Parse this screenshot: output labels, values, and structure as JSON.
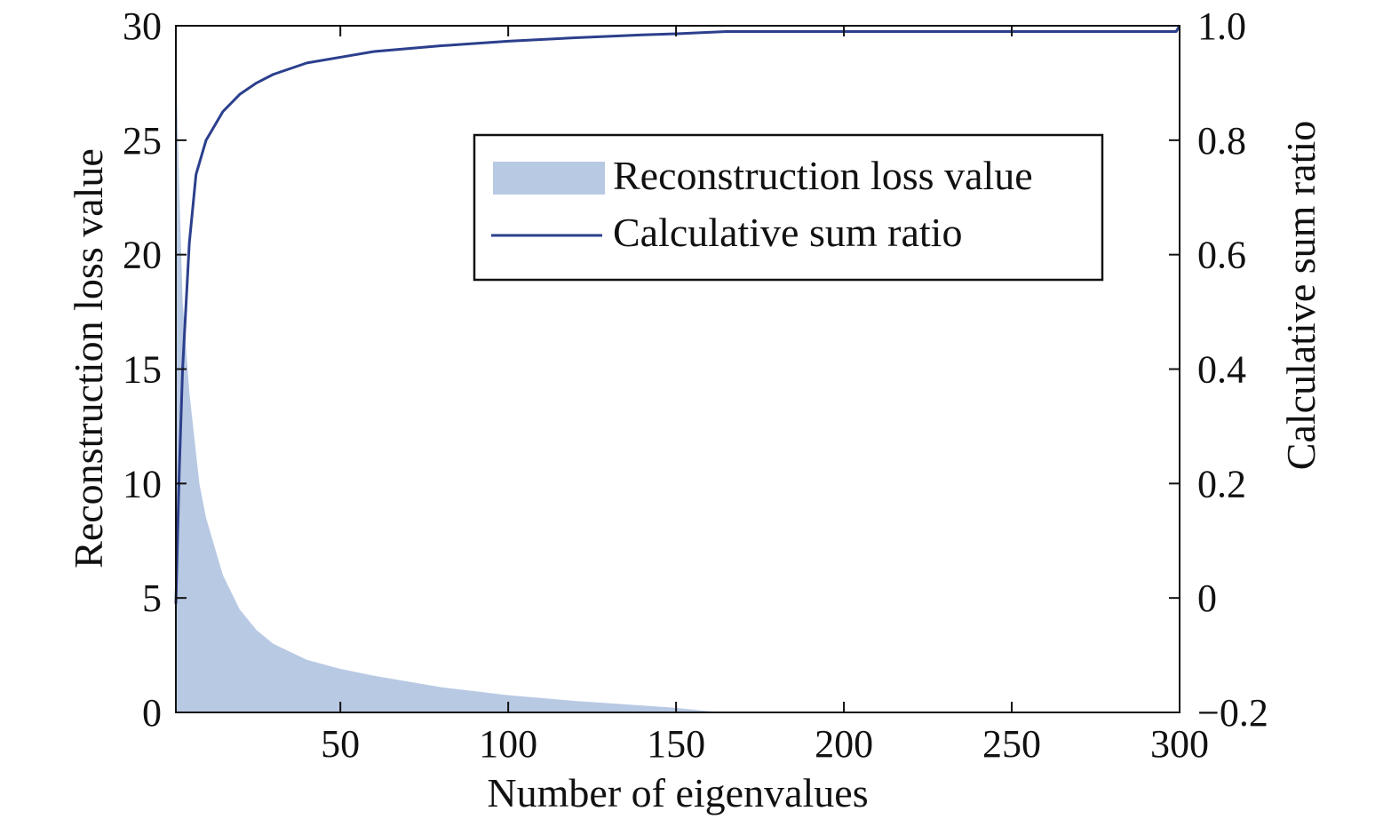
{
  "chart_data": {
    "type": "area",
    "xlabel": "Number of eigenvalues",
    "ylabel_left": "Reconstruction loss value",
    "ylabel_right": "Calculative sum ratio",
    "xlim": [
      1,
      300
    ],
    "ylim_left": [
      0,
      30
    ],
    "ylim_right": [
      -0.2,
      1.0
    ],
    "xticks": [
      50,
      100,
      150,
      200,
      250,
      300
    ],
    "yticks_left": [
      0,
      5,
      10,
      15,
      20,
      25,
      30
    ],
    "yticks_right": [
      "−0.2",
      "0",
      "0.2",
      "0.4",
      "0.6",
      "0.8",
      "1.0"
    ],
    "yticks_right_values": [
      -0.2,
      0,
      0.2,
      0.4,
      0.6,
      0.8,
      1.0
    ],
    "legend_position": "top-right",
    "grid": false,
    "series": [
      {
        "name": "Reconstruction loss value",
        "kind": "area",
        "axis": "left",
        "color": "#b8c9e3",
        "x": [
          1,
          2,
          3,
          5,
          8,
          10,
          15,
          20,
          25,
          30,
          40,
          50,
          60,
          80,
          100,
          120,
          140,
          150,
          160,
          170,
          200,
          250,
          300
        ],
        "y": [
          29,
          23,
          18,
          14,
          10,
          8.5,
          6,
          4.5,
          3.6,
          3.0,
          2.3,
          1.9,
          1.6,
          1.1,
          0.75,
          0.5,
          0.3,
          0.2,
          0.05,
          0,
          0,
          0,
          0
        ]
      },
      {
        "name": "Calculative sum ratio",
        "kind": "line",
        "axis": "right",
        "color": "#2b3f8c",
        "x": [
          1,
          2,
          3,
          5,
          7,
          10,
          15,
          20,
          25,
          30,
          40,
          50,
          60,
          80,
          100,
          120,
          140,
          150,
          165,
          200,
          250,
          299,
          300
        ],
        "y": [
          -0.01,
          0.22,
          0.4,
          0.62,
          0.74,
          0.8,
          0.85,
          0.88,
          0.9,
          0.915,
          0.935,
          0.945,
          0.955,
          0.965,
          0.973,
          0.979,
          0.984,
          0.986,
          0.99,
          0.99,
          0.99,
          0.99,
          1.0
        ]
      }
    ]
  }
}
